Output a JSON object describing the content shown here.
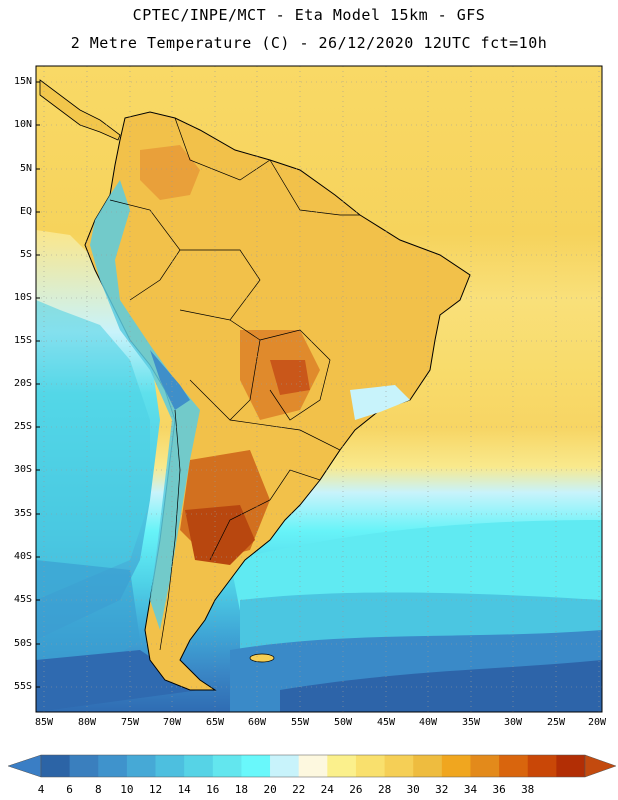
{
  "title_line1": "CPTEC/INPE/MCT -  Eta Model 15km - GFS",
  "title_line2": "2 Metre Temperature (C) - 26/12/2020 12UTC fct=10h",
  "lat_labels": [
    "15N",
    "10N",
    "5N",
    "EQ",
    "5S",
    "10S",
    "15S",
    "20S",
    "25S",
    "30S",
    "35S",
    "40S",
    "45S",
    "50S",
    "55S"
  ],
  "lon_labels": [
    "85W",
    "80W",
    "75W",
    "70W",
    "65W",
    "60W",
    "55W",
    "50W",
    "45W",
    "40W",
    "35W",
    "30W",
    "25W",
    "20W"
  ],
  "colorbar": {
    "labels": [
      "4",
      "6",
      "8",
      "10",
      "12",
      "14",
      "16",
      "18",
      "20",
      "22",
      "24",
      "26",
      "28",
      "30",
      "32",
      "34",
      "36",
      "38"
    ],
    "colors": [
      "#2c64a6",
      "#3a7fbe",
      "#3f93cc",
      "#46a9d6",
      "#4dbfdf",
      "#56d3e6",
      "#63e6ee",
      "#69f8fb",
      "#c8f3fb",
      "#fdf8df",
      "#fbf08c",
      "#f9e06d",
      "#f5cf56",
      "#eebc3f",
      "#f0a61f",
      "#e38a1b",
      "#d9650d",
      "#c94707",
      "#b22e05"
    ],
    "under_color": "#3a7ec5",
    "over_color": "#c34a0e"
  }
}
